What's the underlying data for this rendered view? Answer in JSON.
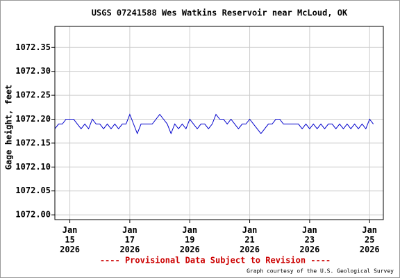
{
  "chart_data": {
    "type": "line",
    "title": "USGS 07241588 Wes Watkins Reservoir near McLoud, OK",
    "ylabel": "Gage height, feet",
    "footnote": "---- Provisional Data Subject to Revision ----",
    "credit": "Graph courtesy of the U.S. Geological Survey",
    "xlim": [
      "2026-01-14T12:00",
      "2026-01-25T11:00"
    ],
    "ylim": [
      1071.99,
      1072.394
    ],
    "xticks": [
      {
        "value": "2026-01-15",
        "label": "Jan 15 2026"
      },
      {
        "value": "2026-01-17",
        "label": "Jan 17 2026"
      },
      {
        "value": "2026-01-19",
        "label": "Jan 19 2026"
      },
      {
        "value": "2026-01-21",
        "label": "Jan 21 2026"
      },
      {
        "value": "2026-01-23",
        "label": "Jan 23 2026"
      },
      {
        "value": "2026-01-25",
        "label": "Jan 25 2026"
      }
    ],
    "yticks": [
      {
        "value": 1072.0,
        "label": "1072.00"
      },
      1072.05,
      {
        "value": 1072.1,
        "label": "1072.10"
      },
      1072.15,
      {
        "value": 1072.2,
        "label": "1072.20"
      },
      1072.25,
      {
        "value": 1072.3,
        "label": "1072.30"
      },
      1072.35
    ],
    "grid": true,
    "series": [
      {
        "color": "#0000cc",
        "x": [
          "2026-01-14T12:00",
          "2026-01-14T15:00",
          "2026-01-14T18:00",
          "2026-01-14T21:00",
          "2026-01-15T00:00",
          "2026-01-15T03:00",
          "2026-01-15T06:00",
          "2026-01-15T09:00",
          "2026-01-15T12:00",
          "2026-01-15T15:00",
          "2026-01-15T18:00",
          "2026-01-15T21:00",
          "2026-01-16T00:00",
          "2026-01-16T03:00",
          "2026-01-16T06:00",
          "2026-01-16T09:00",
          "2026-01-16T12:00",
          "2026-01-16T15:00",
          "2026-01-16T18:00",
          "2026-01-16T21:00",
          "2026-01-17T00:00",
          "2026-01-17T03:00",
          "2026-01-17T06:00",
          "2026-01-17T09:00",
          "2026-01-17T12:00",
          "2026-01-17T15:00",
          "2026-01-17T18:00",
          "2026-01-17T21:00",
          "2026-01-18T00:00",
          "2026-01-18T03:00",
          "2026-01-18T06:00",
          "2026-01-18T09:00",
          "2026-01-18T12:00",
          "2026-01-18T15:00",
          "2026-01-18T18:00",
          "2026-01-18T21:00",
          "2026-01-19T00:00",
          "2026-01-19T03:00",
          "2026-01-19T06:00",
          "2026-01-19T09:00",
          "2026-01-19T12:00",
          "2026-01-19T15:00",
          "2026-01-19T18:00",
          "2026-01-19T21:00",
          "2026-01-20T00:00",
          "2026-01-20T03:00",
          "2026-01-20T06:00",
          "2026-01-20T09:00",
          "2026-01-20T12:00",
          "2026-01-20T15:00",
          "2026-01-20T18:00",
          "2026-01-20T21:00",
          "2026-01-21T00:00",
          "2026-01-21T03:00",
          "2026-01-21T06:00",
          "2026-01-21T09:00",
          "2026-01-21T12:00",
          "2026-01-21T15:00",
          "2026-01-21T18:00",
          "2026-01-21T21:00",
          "2026-01-22T00:00",
          "2026-01-22T03:00",
          "2026-01-22T06:00",
          "2026-01-22T09:00",
          "2026-01-22T12:00",
          "2026-01-22T15:00",
          "2026-01-22T18:00",
          "2026-01-22T21:00",
          "2026-01-23T00:00",
          "2026-01-23T03:00",
          "2026-01-23T06:00",
          "2026-01-23T09:00",
          "2026-01-23T12:00",
          "2026-01-23T15:00",
          "2026-01-23T18:00",
          "2026-01-23T21:00",
          "2026-01-24T00:00",
          "2026-01-24T03:00",
          "2026-01-24T06:00",
          "2026-01-24T09:00",
          "2026-01-24T12:00",
          "2026-01-24T15:00",
          "2026-01-24T18:00",
          "2026-01-24T21:00",
          "2026-01-25T00:00",
          "2026-01-25T03:00"
        ],
        "values": [
          1072.18,
          1072.19,
          1072.19,
          1072.2,
          1072.2,
          1072.2,
          1072.19,
          1072.18,
          1072.19,
          1072.18,
          1072.2,
          1072.19,
          1072.19,
          1072.18,
          1072.19,
          1072.18,
          1072.19,
          1072.18,
          1072.19,
          1072.19,
          1072.21,
          1072.19,
          1072.17,
          1072.19,
          1072.19,
          1072.19,
          1072.19,
          1072.2,
          1072.21,
          1072.2,
          1072.19,
          1072.17,
          1072.19,
          1072.18,
          1072.19,
          1072.18,
          1072.2,
          1072.19,
          1072.18,
          1072.19,
          1072.19,
          1072.18,
          1072.19,
          1072.21,
          1072.2,
          1072.2,
          1072.19,
          1072.2,
          1072.19,
          1072.18,
          1072.19,
          1072.19,
          1072.2,
          1072.19,
          1072.18,
          1072.17,
          1072.18,
          1072.19,
          1072.19,
          1072.2,
          1072.2,
          1072.19,
          1072.19,
          1072.19,
          1072.19,
          1072.19,
          1072.18,
          1072.19,
          1072.18,
          1072.19,
          1072.18,
          1072.19,
          1072.18,
          1072.19,
          1072.19,
          1072.18,
          1072.19,
          1072.18,
          1072.19,
          1072.18,
          1072.19,
          1072.18,
          1072.19,
          1072.18,
          1072.2,
          1072.19
        ]
      }
    ]
  }
}
